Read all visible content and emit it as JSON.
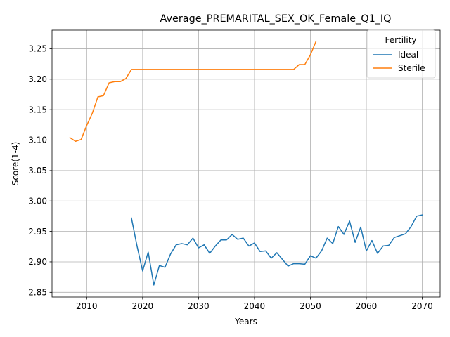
{
  "chart_data": {
    "type": "line",
    "title": "Average_PREMARITAL_SEX_OK_Female_Q1_IQ",
    "xlabel": "Years",
    "ylabel": "Score(1-4)",
    "xlim": [
      2003.8,
      2073.2
    ],
    "ylim": [
      2.8423,
      3.2805
    ],
    "xticks": [
      2010,
      2020,
      2030,
      2040,
      2050,
      2060,
      2070
    ],
    "xtick_labels": [
      "2010",
      "2020",
      "2030",
      "2040",
      "2050",
      "2060",
      "2070"
    ],
    "yticks": [
      2.85,
      2.9,
      2.95,
      3.0,
      3.05,
      3.1,
      3.15,
      3.2,
      3.25
    ],
    "ytick_labels": [
      "2.85",
      "2.90",
      "2.95",
      "3.00",
      "3.05",
      "3.10",
      "3.15",
      "3.20",
      "3.25"
    ],
    "grid": true,
    "legend": {
      "title": "Fertility",
      "placement": "top-right"
    },
    "series": [
      {
        "name": "Ideal",
        "color": "#1f77b4",
        "x": [
          2018,
          2019,
          2020,
          2021,
          2022,
          2023,
          2024,
          2025,
          2026,
          2027,
          2028,
          2029,
          2030,
          2031,
          2032,
          2033,
          2034,
          2035,
          2036,
          2037,
          2038,
          2039,
          2040,
          2041,
          2042,
          2043,
          2044,
          2045,
          2046,
          2047,
          2048,
          2049,
          2050,
          2051,
          2052,
          2053,
          2054,
          2055,
          2056,
          2057,
          2058,
          2059,
          2060,
          2061,
          2062,
          2063,
          2064,
          2065,
          2066,
          2067,
          2068,
          2069,
          2070
        ],
        "y": [
          2.972,
          2.926,
          2.885,
          2.916,
          2.862,
          2.894,
          2.891,
          2.913,
          2.928,
          2.93,
          2.928,
          2.939,
          2.923,
          2.928,
          2.914,
          2.926,
          2.936,
          2.936,
          2.945,
          2.937,
          2.939,
          2.926,
          2.931,
          2.917,
          2.918,
          2.906,
          2.915,
          2.904,
          2.893,
          2.897,
          2.897,
          2.896,
          2.91,
          2.906,
          2.918,
          2.939,
          2.93,
          2.958,
          2.945,
          2.967,
          2.932,
          2.957,
          2.918,
          2.935,
          2.914,
          2.926,
          2.927,
          2.94,
          2.943,
          2.946,
          2.958,
          2.975,
          2.977
        ]
      },
      {
        "name": "Sterile",
        "color": "#ff7f0e",
        "x": [
          2007,
          2008,
          2009,
          2010,
          2011,
          2012,
          2013,
          2014,
          2015,
          2016,
          2017,
          2018,
          2019,
          2020,
          2021,
          2022,
          2023,
          2024,
          2025,
          2026,
          2027,
          2028,
          2029,
          2030,
          2031,
          2032,
          2033,
          2034,
          2035,
          2036,
          2037,
          2038,
          2039,
          2040,
          2041,
          2042,
          2043,
          2044,
          2045,
          2046,
          2047,
          2048,
          2049,
          2050,
          2051
        ],
        "y": [
          3.104,
          3.098,
          3.101,
          3.124,
          3.144,
          3.171,
          3.173,
          3.194,
          3.196,
          3.196,
          3.201,
          3.216,
          3.216,
          3.216,
          3.216,
          3.216,
          3.216,
          3.216,
          3.216,
          3.216,
          3.216,
          3.216,
          3.216,
          3.216,
          3.216,
          3.216,
          3.216,
          3.216,
          3.216,
          3.216,
          3.216,
          3.216,
          3.216,
          3.216,
          3.216,
          3.216,
          3.216,
          3.216,
          3.216,
          3.216,
          3.216,
          3.224,
          3.224,
          3.24,
          3.262
        ]
      }
    ]
  }
}
